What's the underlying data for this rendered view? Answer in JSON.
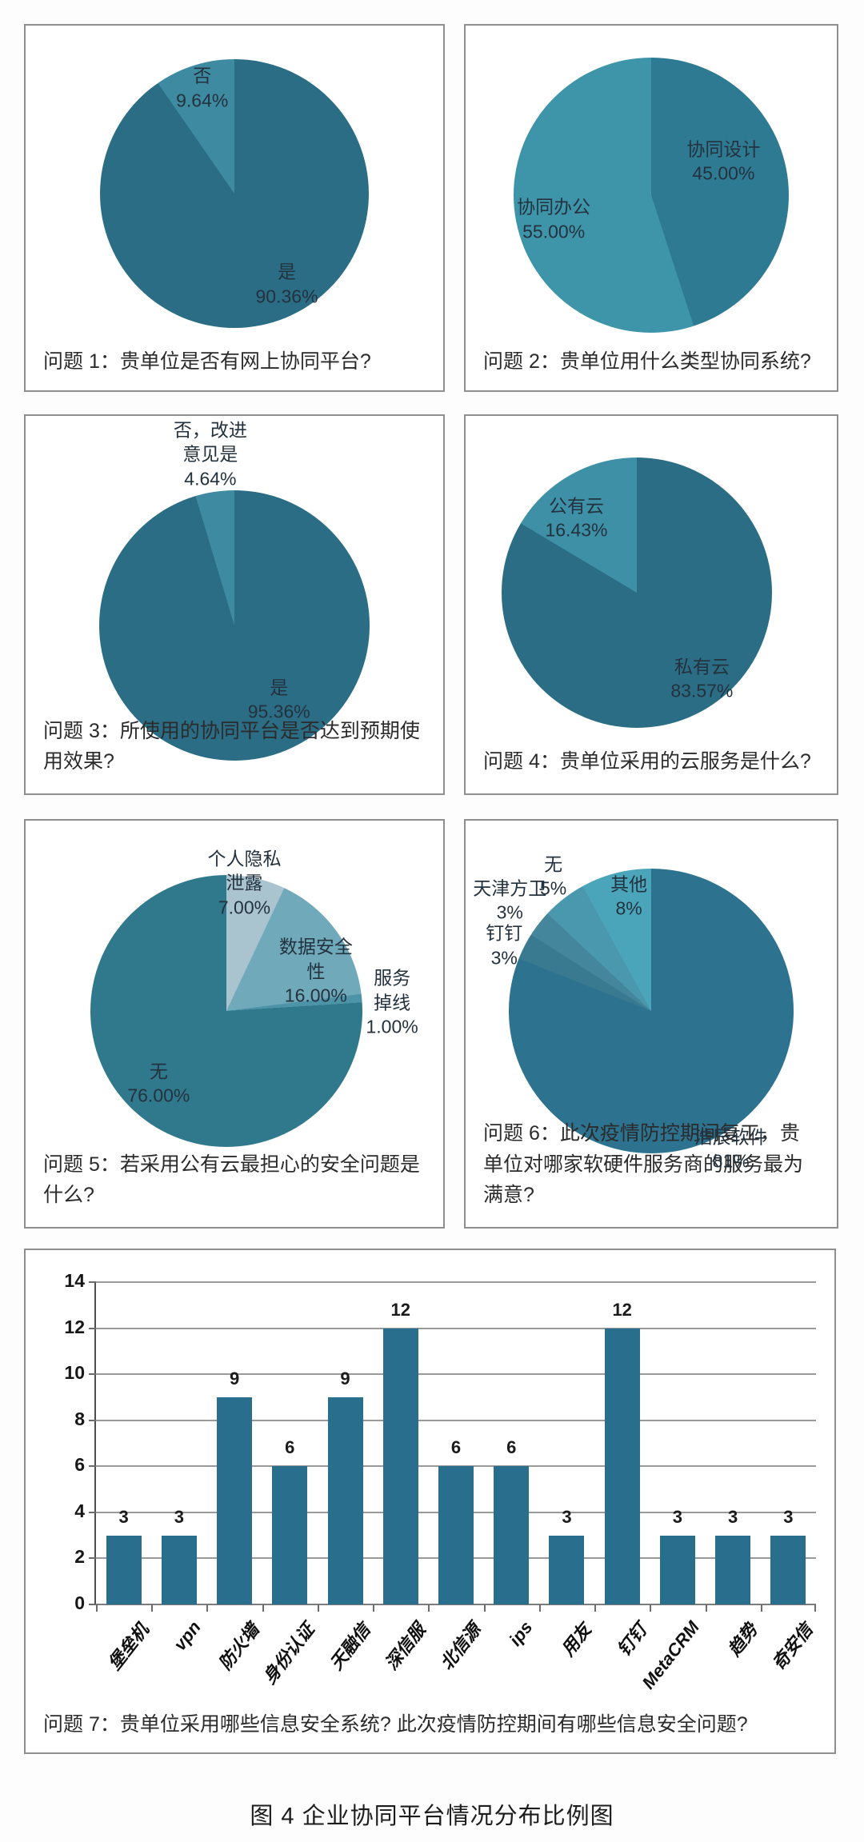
{
  "figure": {
    "caption": "图 4  企业协同平台情况分布比例图"
  },
  "chart_data": [
    {
      "type": "pie",
      "question": "问题 1：贵单位是否有网上协同平台?",
      "legend_position": "none",
      "slices": [
        {
          "label": "是",
          "value": 90.36,
          "value_label": "90.36%",
          "display": [
            "是",
            "90.36%"
          ],
          "color": "#2b6d85",
          "label_angle": 150,
          "label_f": 0.78
        },
        {
          "label": "否",
          "value": 9.64,
          "value_label": "9.64%",
          "display": [
            "否",
            "9.64%"
          ],
          "color": "#3e8ba1",
          "label_angle": 343,
          "label_f": 0.82
        }
      ]
    },
    {
      "type": "pie",
      "question": "问题 2：贵单位用什么类型协同系统?",
      "legend_position": "none",
      "slices": [
        {
          "label": "协同设计",
          "value": 45.0,
          "value_label": "45.00%",
          "display": [
            "协同设计",
            "45.00%"
          ],
          "color": "#2e7a92",
          "label_angle": 65,
          "label_f": 0.58
        },
        {
          "label": "协同办公",
          "value": 55.0,
          "value_label": "55.00%",
          "display": [
            "协同办公",
            "55.00%"
          ],
          "color": "#3e95aa",
          "label_angle": 256,
          "label_f": 0.73
        }
      ]
    },
    {
      "type": "pie",
      "question": "问题 3：所使用的协同平台是否达到预期使用效果?",
      "legend_position": "none",
      "slices": [
        {
          "label": "是",
          "value": 95.36,
          "value_label": "95.36%",
          "display": [
            "是",
            "95.36%"
          ],
          "color": "#2b6d85",
          "label_angle": 149,
          "label_f": 0.64
        },
        {
          "label": "否，改进意见是",
          "value": 4.64,
          "value_label": "4.64%",
          "display": [
            "否，改进",
            "意见是",
            "4.64%"
          ],
          "color": "#3e8ba1",
          "label_angle": 352,
          "label_f": 1.28
        }
      ]
    },
    {
      "type": "pie",
      "question": "问题 4：贵单位采用的云服务是什么?",
      "legend_position": "none",
      "slices": [
        {
          "label": "私有云",
          "value": 83.57,
          "value_label": "83.57%",
          "display": [
            "私有云",
            "83.57%"
          ],
          "color": "#2b6d85",
          "label_angle": 143,
          "label_f": 0.8
        },
        {
          "label": "公有云",
          "value": 16.43,
          "value_label": "16.43%",
          "display": [
            "公有云",
            "16.43%"
          ],
          "color": "#3e90a6",
          "label_angle": 321,
          "label_f": 0.71
        }
      ]
    },
    {
      "type": "pie",
      "question": "问题 5：若采用公有云最担心的安全问题是什么?",
      "legend_position": "none",
      "slices": [
        {
          "label": "个人隐私泄露",
          "value": 7.0,
          "value_label": "7.00%",
          "display": [
            "个人隐私",
            "泄露",
            "7.00%"
          ],
          "color": "#a9c4ce",
          "label_angle": 8,
          "label_f": 0.95
        },
        {
          "label": "数据安全性",
          "value": 16.0,
          "value_label": "16.00%",
          "display": [
            "数据安全",
            "性",
            "16.00%"
          ],
          "color": "#6fa9ba",
          "label_angle": 66,
          "label_f": 0.72
        },
        {
          "label": "服务掉线",
          "value": 1.0,
          "value_label": "1.00%",
          "display": [
            "服务掉线",
            "1.00%"
          ],
          "color": "#4e94a8",
          "label_angle": 87,
          "label_f": 1.22
        },
        {
          "label": "无",
          "value": 76.0,
          "value_label": "76.00%",
          "display": [
            "无",
            "76.00%"
          ],
          "color": "#30788c",
          "label_angle": 223,
          "label_f": 0.73
        }
      ]
    },
    {
      "type": "pie",
      "question": "问题 6：此次疫情防控期间复工，贵单位对哪家软硬件服务商的服务最为满意?",
      "legend_position": "none",
      "slices": [
        {
          "label": "浩辰软件",
          "value": 81,
          "value_label": "81%",
          "display": [
            "浩辰软件",
            "81%"
          ],
          "color": "#2d7390",
          "label_angle": 150,
          "label_f": 1.12
        },
        {
          "label": "钉钉",
          "value": 3,
          "value_label": "3%",
          "display": [
            "钉钉",
            "3%"
          ],
          "color": "#3a7a90",
          "label_angle": 294,
          "label_f": 1.13
        },
        {
          "label": "天津方卫",
          "value": 3,
          "value_label": "3%",
          "display": [
            "天津方卫",
            "3%"
          ],
          "color": "#44869c",
          "label_angle": 308,
          "label_f": 1.26
        },
        {
          "label": "无",
          "value": 5,
          "value_label": "5%",
          "display": [
            "无",
            "5%"
          ],
          "color": "#4a98ad",
          "label_angle": 324,
          "label_f": 1.17
        },
        {
          "label": "其他",
          "value": 8,
          "value_label": "8%",
          "display": [
            "其他",
            "8%"
          ],
          "color": "#4ba5ba",
          "label_angle": 349,
          "label_f": 0.82
        }
      ]
    },
    {
      "type": "bar",
      "question": "问题 7：贵单位采用哪些信息安全系统? 此次疫情防控期间有哪些信息安全问题?",
      "categories": [
        "堡垒机",
        "vpn",
        "防火墙",
        "身份认证",
        "天融信",
        "深信服",
        "北信源",
        "ips",
        "用友",
        "钉钉",
        "MetaCRM",
        "趋势",
        "奇安信"
      ],
      "values": [
        3,
        3,
        9,
        6,
        9,
        12,
        6,
        6,
        3,
        12,
        3,
        3,
        3
      ],
      "ylim": [
        0,
        14
      ],
      "ytick_step": 2,
      "yticks": [
        0,
        2,
        4,
        6,
        8,
        10,
        12,
        14
      ],
      "bar_color": "#2a6e8e",
      "grid": true,
      "legend_position": "none"
    }
  ]
}
